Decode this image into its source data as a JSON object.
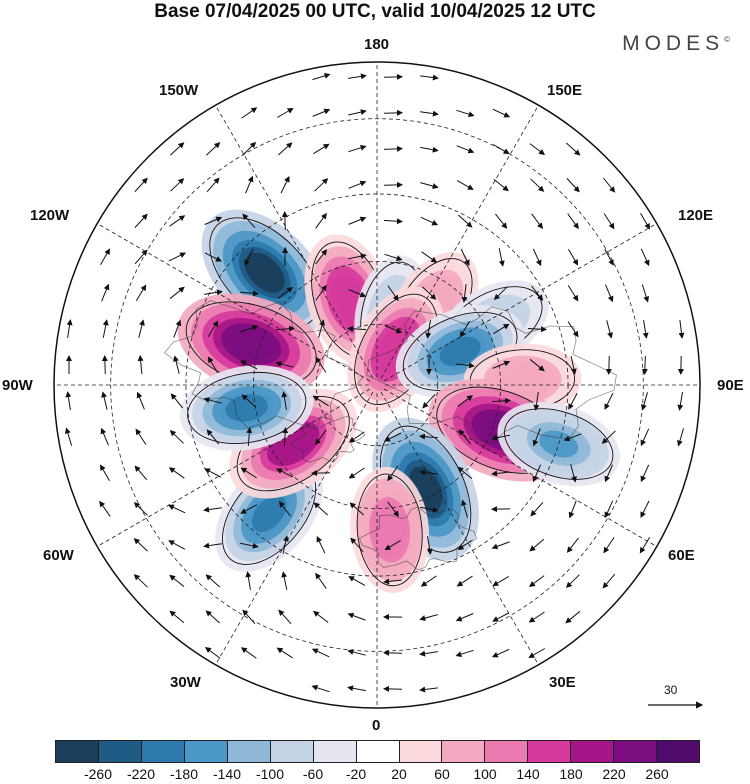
{
  "title": "Base 07/04/2025 00 UTC, valid 10/04/2025 12 UTC",
  "brand": "MODES",
  "brand_mark": "©",
  "longitude_labels": {
    "deg180": "180",
    "w150": "150W",
    "e150": "150E",
    "w120": "120W",
    "e120": "120E",
    "w90": "90W",
    "e90": "90E",
    "w60": "60W",
    "e60": "60E",
    "w30": "30W",
    "e30": "30E",
    "deg0": "0"
  },
  "reference_vector": {
    "label": "30"
  },
  "colorbar": {
    "ticks": [
      "-260",
      "-220",
      "-180",
      "-140",
      "-100",
      "-60",
      "-20",
      "20",
      "60",
      "100",
      "140",
      "180",
      "220",
      "260"
    ],
    "colors": [
      "#1b3e5a",
      "#1f5b85",
      "#2d79ad",
      "#4b97c7",
      "#8fb8d8",
      "#c4d3e6",
      "#e6e6f1",
      "#ffffff",
      "#fbd9dc",
      "#f3a9bf",
      "#ea7ab0",
      "#d63a9c",
      "#a71688",
      "#7c0d80",
      "#4f0a6b"
    ]
  },
  "chart_data": {
    "type": "map",
    "projection": "north polar stereographic",
    "quantity_units": "field anomaly (colorbar scale -260 to 260)",
    "anomaly_centers": [
      {
        "lon": -135,
        "lat": 52,
        "value": -260
      },
      {
        "lon": -108,
        "lat": 58,
        "value": 260
      },
      {
        "lon": -162,
        "lat": 68,
        "value": 180
      },
      {
        "lon": 168,
        "lat": 72,
        "value": -100
      },
      {
        "lon": 145,
        "lat": 66,
        "value": 100
      },
      {
        "lon": 152,
        "lat": 80,
        "value": 180
      },
      {
        "lon": 118,
        "lat": 58,
        "value": -100
      },
      {
        "lon": 112,
        "lat": 68,
        "value": -180
      },
      {
        "lon": 92,
        "lat": 55,
        "value": 100
      },
      {
        "lon": 70,
        "lat": 58,
        "value": 260
      },
      {
        "lon": 72,
        "lat": 45,
        "value": -140
      },
      {
        "lon": 25,
        "lat": 62,
        "value": -260
      },
      {
        "lon": 5,
        "lat": 55,
        "value": 140
      },
      {
        "lon": -40,
        "lat": 50,
        "value": -180
      },
      {
        "lon": -55,
        "lat": 65,
        "value": 220
      },
      {
        "lon": -80,
        "lat": 58,
        "value": -180
      }
    ]
  }
}
